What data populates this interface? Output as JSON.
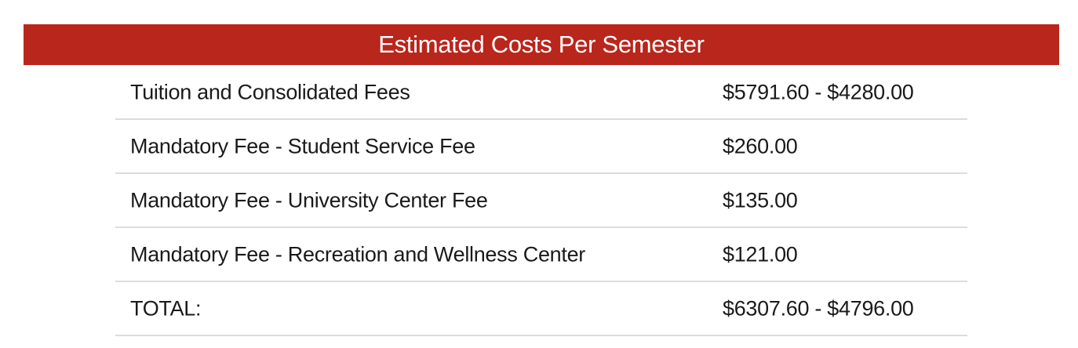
{
  "header": {
    "title": "Estimated Costs Per Semester"
  },
  "table": {
    "rows": [
      {
        "label": "Tuition and Consolidated Fees",
        "amount": "$5791.60 - $4280.00"
      },
      {
        "label": "Mandatory Fee - Student Service Fee",
        "amount": "$260.00"
      },
      {
        "label": "Mandatory Fee - University Center Fee",
        "amount": "$135.00"
      },
      {
        "label": "Mandatory Fee - Recreation and Wellness Center",
        "amount": "$121.00"
      },
      {
        "label": "TOTAL:",
        "amount": "$6307.60 - $4796.00"
      }
    ]
  },
  "colors": {
    "header_background": "#b9261c",
    "header_text": "#ffffff",
    "row_divider": "#dcdcdc"
  }
}
